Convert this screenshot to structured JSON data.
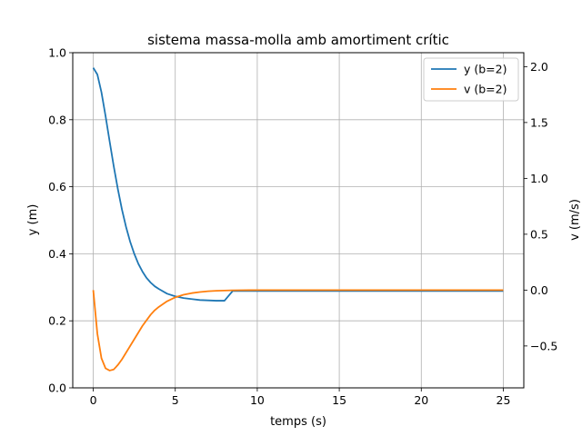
{
  "chart_data": {
    "type": "line",
    "title": "sistema massa-molla amb amortiment crític",
    "xlabel": "temps (s)",
    "ylabel": "y (m)",
    "ylabel_right": "v (m/s)",
    "xlim": [
      -1.25,
      26.25
    ],
    "ylim": [
      0,
      1.0
    ],
    "ylim_right": [
      -0.875,
      2.125
    ],
    "x_ticks": [
      0,
      5,
      10,
      15,
      20,
      25
    ],
    "y_ticks": [
      0.0,
      0.2,
      0.4,
      0.6,
      0.8,
      1.0
    ],
    "y_ticks_right": [
      -0.5,
      0.0,
      0.5,
      1.0,
      1.5,
      2.0
    ],
    "grid": true,
    "legend_position": "top-right",
    "x": [
      0,
      0.25,
      0.5,
      0.75,
      1,
      1.25,
      1.5,
      1.75,
      2,
      2.25,
      2.5,
      2.75,
      3,
      3.25,
      3.5,
      3.75,
      4,
      4.5,
      5,
      5.5,
      6,
      6.5,
      7,
      7.5,
      8,
      8.5,
      9,
      9.5,
      10,
      11,
      12,
      13,
      14,
      15,
      16,
      17,
      18,
      19,
      20,
      21,
      22,
      23,
      24,
      25
    ],
    "series": [
      {
        "name": "y (b=2)",
        "axis": "left",
        "color": "#1f77b4",
        "values": [
          0.955,
          0.935,
          0.882,
          0.811,
          0.735,
          0.661,
          0.593,
          0.532,
          0.48,
          0.436,
          0.4,
          0.37,
          0.347,
          0.328,
          0.314,
          0.303,
          0.295,
          0.281,
          0.273,
          0.268,
          0.265,
          0.262,
          0.261,
          0.26,
          0.26,
          0.289,
          0.289,
          0.289,
          0.289,
          0.289,
          0.289,
          0.289,
          0.289,
          0.289,
          0.289,
          0.289,
          0.289,
          0.289,
          0.289,
          0.289,
          0.289,
          0.289,
          0.289,
          0.289
        ]
      },
      {
        "name": "v (b=2)",
        "axis": "right",
        "color": "#ff7f0e",
        "values": [
          0.0,
          -0.39,
          -0.61,
          -0.7,
          -0.72,
          -0.71,
          -0.67,
          -0.62,
          -0.56,
          -0.5,
          -0.44,
          -0.38,
          -0.32,
          -0.27,
          -0.22,
          -0.18,
          -0.15,
          -0.1,
          -0.065,
          -0.042,
          -0.027,
          -0.017,
          -0.01,
          -0.006,
          -0.004,
          -0.002,
          -0.001,
          -0.0005,
          0.0,
          0.0,
          0.0,
          0.0,
          0.0,
          0.0,
          0.0,
          0.0,
          0.0,
          0.0,
          0.0,
          0.0,
          0.0,
          0.0,
          0.0,
          0.0
        ]
      }
    ]
  }
}
